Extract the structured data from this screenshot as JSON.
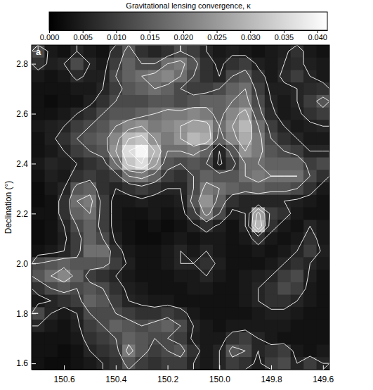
{
  "chart_data": {
    "type": "heatmap",
    "y_label": "Declination (°)",
    "panel_label": "a",
    "colorbar": {
      "label": "Gravitational lensing convergence, κ",
      "range": [
        0,
        0.0415
      ],
      "ticks": [
        {
          "value": 0,
          "label": "0.000"
        },
        {
          "value": 0.005,
          "label": "0.005"
        },
        {
          "value": 0.01,
          "label": "0.010"
        },
        {
          "value": 0.015,
          "label": "0.015"
        },
        {
          "value": 0.02,
          "label": "0.020"
        },
        {
          "value": 0.025,
          "label": "0.025"
        },
        {
          "value": 0.03,
          "label": "0.030"
        },
        {
          "value": 0.035,
          "label": "0.035"
        },
        {
          "value": 0.04,
          "label": "0.040"
        }
      ]
    },
    "contours": [
      0.006,
      0.012,
      0.018,
      0.024,
      0.03,
      0.036
    ],
    "xlim": [
      150.725,
      149.575
    ],
    "ylim": [
      1.575,
      2.875
    ],
    "xticks": [
      150.6,
      150.4,
      150.2,
      {
        "value": 150,
        "label": "150.0"
      },
      149.8,
      149.6
    ],
    "yticks": [
      2.8,
      2.6,
      2.4,
      2.2,
      {
        "value": 2,
        "label": "2.0"
      },
      1.8,
      1.6
    ],
    "x": [
      150.7,
      150.65,
      150.6,
      150.55,
      150.5,
      150.45,
      150.4,
      150.35,
      150.3,
      150.25,
      150.2,
      150.15,
      150.1,
      150.05,
      150.0,
      149.95,
      149.9,
      149.85,
      149.8,
      149.75,
      149.7,
      149.65,
      149.6
    ],
    "y": [
      2.85,
      2.8,
      2.75,
      2.7,
      2.65,
      2.6,
      2.55,
      2.5,
      2.45,
      2.4,
      2.35,
      2.3,
      2.25,
      2.2,
      2.15,
      2.1,
      2.05,
      2.0,
      1.95,
      1.9,
      1.85,
      1.8,
      1.75,
      1.7,
      1.65,
      1.6
    ],
    "z": [
      [
        0.012,
        0.004,
        0.003,
        0.006,
        0.004,
        0.003,
        0.008,
        0.014,
        0.008,
        0.006,
        0.008,
        0.012,
        0.01,
        0.006,
        0.004,
        0.005,
        0.004,
        0.003,
        0.004,
        0.005,
        0.008,
        0.004,
        0.003
      ],
      [
        0.008,
        0.005,
        0.006,
        0.012,
        0.006,
        0.004,
        0.01,
        0.016,
        0.012,
        0.012,
        0.018,
        0.02,
        0.014,
        0.008,
        0.005,
        0.008,
        0.01,
        0.005,
        0.004,
        0.006,
        0.007,
        0.005,
        0.004
      ],
      [
        0.004,
        0.003,
        0.004,
        0.007,
        0.005,
        0.005,
        0.012,
        0.016,
        0.018,
        0.02,
        0.022,
        0.018,
        0.012,
        0.008,
        0.006,
        0.012,
        0.014,
        0.008,
        0.004,
        0.007,
        0.01,
        0.006,
        0.004
      ],
      [
        0.003,
        0.003,
        0.003,
        0.004,
        0.004,
        0.006,
        0.01,
        0.014,
        0.016,
        0.018,
        0.016,
        0.012,
        0.01,
        0.01,
        0.012,
        0.016,
        0.018,
        0.01,
        0.005,
        0.005,
        0.006,
        0.007,
        0.008
      ],
      [
        0.003,
        0.002,
        0.003,
        0.003,
        0.005,
        0.008,
        0.012,
        0.012,
        0.012,
        0.014,
        0.014,
        0.012,
        0.014,
        0.016,
        0.016,
        0.018,
        0.02,
        0.012,
        0.006,
        0.004,
        0.006,
        0.01,
        0.014
      ],
      [
        0.003,
        0.003,
        0.004,
        0.006,
        0.008,
        0.012,
        0.014,
        0.014,
        0.016,
        0.018,
        0.02,
        0.02,
        0.022,
        0.02,
        0.016,
        0.022,
        0.026,
        0.014,
        0.007,
        0.004,
        0.005,
        0.008,
        0.01
      ],
      [
        0.004,
        0.005,
        0.006,
        0.01,
        0.012,
        0.014,
        0.018,
        0.022,
        0.024,
        0.02,
        0.022,
        0.024,
        0.026,
        0.026,
        0.018,
        0.024,
        0.03,
        0.018,
        0.01,
        0.006,
        0.004,
        0.005,
        0.006
      ],
      [
        0.003,
        0.005,
        0.008,
        0.012,
        0.014,
        0.016,
        0.022,
        0.03,
        0.032,
        0.024,
        0.02,
        0.024,
        0.03,
        0.028,
        0.016,
        0.022,
        0.028,
        0.02,
        0.012,
        0.008,
        0.006,
        0.004,
        0.004
      ],
      [
        0.003,
        0.004,
        0.006,
        0.01,
        0.012,
        0.014,
        0.024,
        0.036,
        0.04,
        0.03,
        0.018,
        0.018,
        0.02,
        0.016,
        0.006,
        0.014,
        0.024,
        0.02,
        0.014,
        0.012,
        0.01,
        0.006,
        0.006
      ],
      [
        0.004,
        0.006,
        0.005,
        0.006,
        0.008,
        0.01,
        0.018,
        0.032,
        0.036,
        0.026,
        0.014,
        0.012,
        0.014,
        0.012,
        0.005,
        0.01,
        0.018,
        0.018,
        0.016,
        0.016,
        0.016,
        0.01,
        0.012
      ],
      [
        0.003,
        0.005,
        0.004,
        0.008,
        0.01,
        0.008,
        0.01,
        0.018,
        0.02,
        0.016,
        0.01,
        0.008,
        0.012,
        0.016,
        0.014,
        0.014,
        0.018,
        0.02,
        0.018,
        0.018,
        0.018,
        0.012,
        0.008
      ],
      [
        0.002,
        0.004,
        0.006,
        0.014,
        0.016,
        0.008,
        0.006,
        0.008,
        0.01,
        0.008,
        0.006,
        0.006,
        0.012,
        0.02,
        0.018,
        0.016,
        0.014,
        0.016,
        0.014,
        0.014,
        0.012,
        0.008,
        0.004
      ],
      [
        0.002,
        0.003,
        0.008,
        0.018,
        0.02,
        0.01,
        0.004,
        0.004,
        0.005,
        0.004,
        0.004,
        0.005,
        0.014,
        0.024,
        0.016,
        0.008,
        0.006,
        0.006,
        0.006,
        0.006,
        0.005,
        0.004,
        0.003
      ],
      [
        0.003,
        0.003,
        0.008,
        0.016,
        0.018,
        0.01,
        0.004,
        0.003,
        0.003,
        0.004,
        0.003,
        0.004,
        0.01,
        0.02,
        0.012,
        0.005,
        0.006,
        0.026,
        0.01,
        0.008,
        0.004,
        0.003,
        0.003
      ],
      [
        0.002,
        0.003,
        0.006,
        0.012,
        0.016,
        0.01,
        0.004,
        0.003,
        0.002,
        0.003,
        0.002,
        0.003,
        0.005,
        0.008,
        0.005,
        0.003,
        0.006,
        0.03,
        0.008,
        0.004,
        0.003,
        0.006,
        0.004
      ],
      [
        0.002,
        0.003,
        0.005,
        0.01,
        0.016,
        0.012,
        0.005,
        0.003,
        0.002,
        0.002,
        0.003,
        0.004,
        0.003,
        0.004,
        0.004,
        0.003,
        0.004,
        0.008,
        0.004,
        0.003,
        0.004,
        0.008,
        0.004
      ],
      [
        0.003,
        0.004,
        0.006,
        0.01,
        0.018,
        0.018,
        0.008,
        0.004,
        0.003,
        0.003,
        0.004,
        0.006,
        0.004,
        0.006,
        0.004,
        0.003,
        0.003,
        0.004,
        0.003,
        0.004,
        0.006,
        0.01,
        0.005
      ],
      [
        0.012,
        0.014,
        0.016,
        0.014,
        0.014,
        0.014,
        0.01,
        0.005,
        0.003,
        0.003,
        0.004,
        0.006,
        0.006,
        0.008,
        0.005,
        0.003,
        0.003,
        0.003,
        0.004,
        0.006,
        0.008,
        0.006,
        0.004
      ],
      [
        0.014,
        0.018,
        0.022,
        0.016,
        0.01,
        0.008,
        0.006,
        0.004,
        0.003,
        0.003,
        0.003,
        0.004,
        0.004,
        0.006,
        0.004,
        0.003,
        0.004,
        0.005,
        0.006,
        0.01,
        0.012,
        0.005,
        0.003
      ],
      [
        0.008,
        0.012,
        0.014,
        0.012,
        0.014,
        0.012,
        0.008,
        0.005,
        0.004,
        0.003,
        0.003,
        0.003,
        0.004,
        0.004,
        0.003,
        0.003,
        0.004,
        0.006,
        0.008,
        0.012,
        0.01,
        0.004,
        0.003
      ],
      [
        0.004,
        0.006,
        0.008,
        0.01,
        0.016,
        0.014,
        0.01,
        0.006,
        0.005,
        0.004,
        0.004,
        0.003,
        0.003,
        0.003,
        0.003,
        0.003,
        0.004,
        0.006,
        0.008,
        0.008,
        0.006,
        0.004,
        0.003
      ],
      [
        0.012,
        0.006,
        0.004,
        0.006,
        0.012,
        0.012,
        0.012,
        0.01,
        0.008,
        0.008,
        0.01,
        0.008,
        0.004,
        0.003,
        0.003,
        0.003,
        0.003,
        0.004,
        0.005,
        0.005,
        0.004,
        0.003,
        0.003
      ],
      [
        0.006,
        0.004,
        0.003,
        0.005,
        0.01,
        0.012,
        0.016,
        0.014,
        0.012,
        0.014,
        0.016,
        0.012,
        0.006,
        0.004,
        0.003,
        0.004,
        0.004,
        0.004,
        0.004,
        0.004,
        0.003,
        0.003,
        0.003
      ],
      [
        0.003,
        0.003,
        0.003,
        0.004,
        0.008,
        0.01,
        0.012,
        0.016,
        0.014,
        0.012,
        0.012,
        0.01,
        0.005,
        0.004,
        0.004,
        0.008,
        0.01,
        0.006,
        0.004,
        0.003,
        0.003,
        0.003,
        0.003
      ],
      [
        0.003,
        0.003,
        0.002,
        0.003,
        0.006,
        0.008,
        0.01,
        0.02,
        0.014,
        0.01,
        0.012,
        0.014,
        0.008,
        0.004,
        0.006,
        0.014,
        0.012,
        0.006,
        0.008,
        0.01,
        0.004,
        0.003,
        0.004
      ],
      [
        0.003,
        0.002,
        0.002,
        0.003,
        0.004,
        0.006,
        0.008,
        0.014,
        0.01,
        0.008,
        0.01,
        0.01,
        0.006,
        0.004,
        0.006,
        0.01,
        0.008,
        0.005,
        0.01,
        0.012,
        0.006,
        0.01,
        0.006
      ]
    ]
  }
}
